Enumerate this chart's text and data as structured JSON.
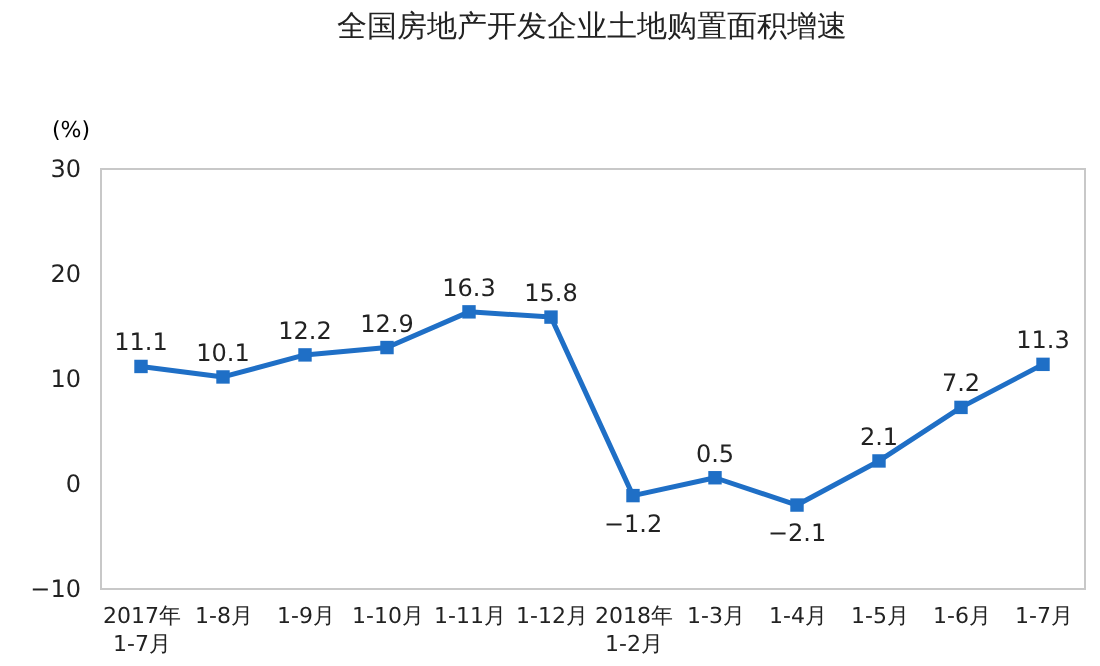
{
  "chart_data": {
    "type": "line",
    "title": "全国房地产开发企业土地购置面积增速",
    "ylabel": "(%)",
    "categories": [
      "2017年\n1-7月",
      "1-8月",
      "1-9月",
      "1-10月",
      "1-11月",
      "1-12月",
      "2018年\n1-2月",
      "1-3月",
      "1-4月",
      "1-5月",
      "1-6月",
      "1-7月"
    ],
    "series": [
      {
        "color": "#1f6fc6",
        "values": [
          11.1,
          10.1,
          12.2,
          12.9,
          16.3,
          15.8,
          -1.2,
          0.5,
          -2.1,
          2.1,
          7.2,
          11.3
        ]
      }
    ],
    "ylim": [
      -10,
      30
    ],
    "yticks": [
      -10,
      0,
      10,
      20,
      30
    ],
    "data_labels": true,
    "marker": "square",
    "grid": false,
    "legend": false
  }
}
